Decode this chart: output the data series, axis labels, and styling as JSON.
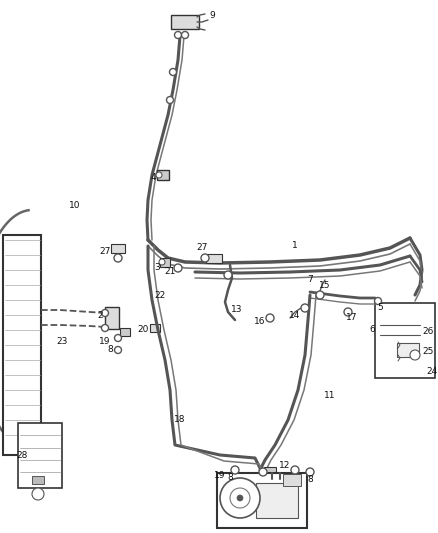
{
  "bg_color": "#ffffff",
  "line_color": "#333333",
  "figsize": [
    4.38,
    5.33
  ],
  "dpi": 100
}
